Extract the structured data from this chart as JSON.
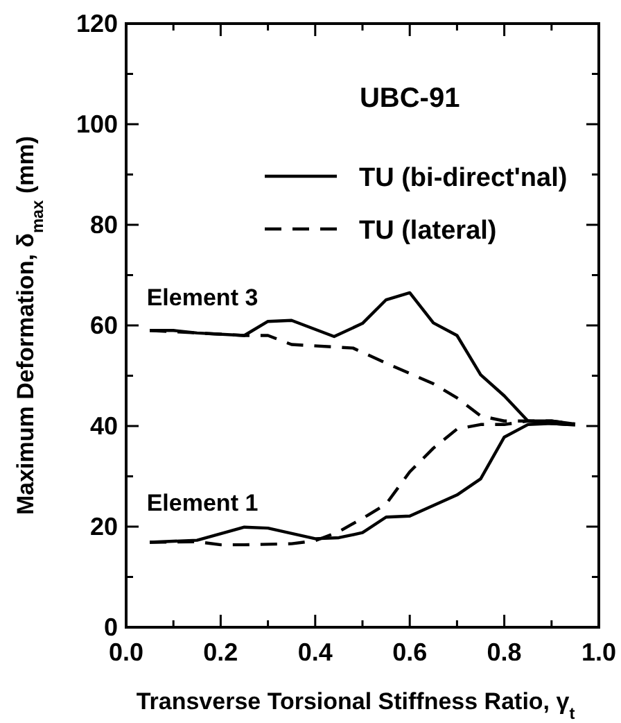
{
  "chart_data": {
    "type": "line",
    "title": "UBC-91",
    "xlabel": "Transverse Torsional Stiffness Ratio, γ$_{t}$",
    "ylabel": "Maximum Deformation, δ$_{max}$  (mm)",
    "xlim": [
      0,
      1
    ],
    "ylim": [
      0,
      120
    ],
    "xticks": [
      {
        "value": 0,
        "label": "0.0"
      },
      {
        "value": 0.1,
        "label": null
      },
      {
        "value": 0.2,
        "label": "0.2"
      },
      {
        "value": 0.3,
        "label": null
      },
      {
        "value": 0.4,
        "label": "0.4"
      },
      {
        "value": 0.5,
        "label": null
      },
      {
        "value": 0.6,
        "label": "0.6"
      },
      {
        "value": 0.7,
        "label": null
      },
      {
        "value": 0.8,
        "label": "0.8"
      },
      {
        "value": 0.9,
        "label": null
      },
      {
        "value": 1,
        "label": "1.0"
      }
    ],
    "yticks": [
      0,
      {
        "value": 10,
        "label": null
      },
      20,
      {
        "value": 30,
        "label": null
      },
      40,
      {
        "value": 50,
        "label": null
      },
      60,
      {
        "value": 70,
        "label": null
      },
      80,
      {
        "value": 90,
        "label": null
      },
      100,
      {
        "value": 110,
        "label": null
      },
      120
    ],
    "legend": "top right",
    "grid": false,
    "series": [
      {
        "name": "TU (bi-direct'nal)",
        "color": "#000000",
        "line_style": "solid",
        "x": [
          0.05,
          0.1,
          0.15,
          0.25,
          0.3,
          0.35,
          0.44,
          0.5,
          0.55,
          0.6,
          0.65,
          0.7,
          0.75,
          0.8,
          0.85,
          0.9,
          0.95
        ],
        "values": [
          59,
          59,
          58.5,
          58,
          60.8,
          61,
          57.8,
          60.4,
          65.1,
          66.5,
          60.5,
          58,
          50.2,
          46,
          41,
          41,
          40.4
        ]
      },
      {
        "name": "TU (lateral)",
        "color": "#000000",
        "line_style": "dashed",
        "x": [
          0.05,
          0.15,
          0.25,
          0.3,
          0.35,
          0.48,
          0.55,
          0.65,
          0.7,
          0.75,
          0.8,
          0.85,
          0.9,
          0.95
        ],
        "values": [
          59,
          58.5,
          58,
          58,
          56.2,
          55.5,
          52.5,
          48.4,
          45.6,
          42,
          41,
          41,
          41,
          40.4
        ]
      },
      {
        "color": "#000000",
        "line_style": "solid",
        "x": [
          0.05,
          0.15,
          0.25,
          0.3,
          0.4,
          0.45,
          0.5,
          0.55,
          0.6,
          0.7,
          0.75,
          0.8,
          0.85,
          0.9,
          0.95
        ],
        "values": [
          16.9,
          17.3,
          19.9,
          19.7,
          17.6,
          17.8,
          18.8,
          21.9,
          22.1,
          26.3,
          29.5,
          37.8,
          40.3,
          40.5,
          40.2
        ]
      },
      {
        "color": "#000000",
        "line_style": "dashed",
        "x": [
          0.05,
          0.15,
          0.2,
          0.25,
          0.35,
          0.4,
          0.45,
          0.51,
          0.55,
          0.6,
          0.65,
          0.7,
          0.75,
          0.8,
          0.85,
          0.9,
          0.95
        ],
        "values": [
          16.9,
          17,
          16.4,
          16.4,
          16.6,
          17.2,
          19,
          22.2,
          24.5,
          30.9,
          35.6,
          39.4,
          40.3,
          40.3,
          41,
          40.5,
          40.2
        ]
      }
    ],
    "annotations": [
      "Element 3",
      "Element 1"
    ]
  }
}
